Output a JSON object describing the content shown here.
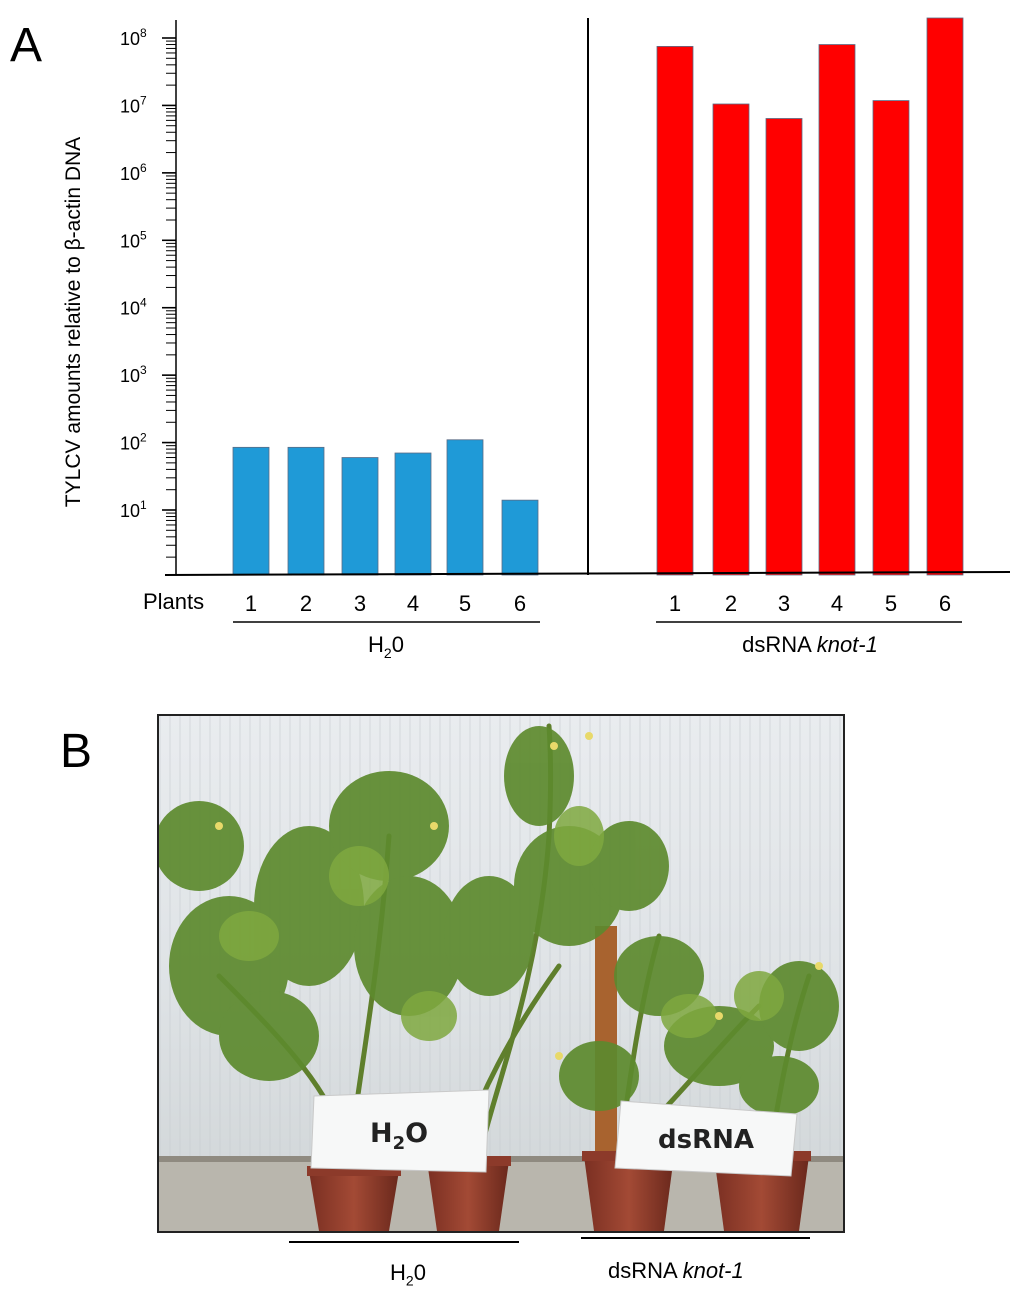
{
  "panel_a": {
    "letter": "A"
  },
  "panel_b": {
    "letter": "B",
    "sign_left": {
      "main": "H",
      "sub": "2",
      "tail": "O"
    },
    "sign_right": "dsRNA",
    "caption_left": {
      "main": "H",
      "sub": "2",
      "tail": "0"
    },
    "caption_right": {
      "prefix": "dsRNA ",
      "italic": "knot-1"
    }
  },
  "chart_data": {
    "type": "bar",
    "scale": "log",
    "ylabel": "TYLCV amounts relative to β-actin DNA",
    "ytick_labels": [
      {
        "base": "10",
        "exp": "1",
        "value": 10
      },
      {
        "base": "10",
        "exp": "2",
        "value": 100
      },
      {
        "base": "10",
        "exp": "3",
        "value": 1000
      },
      {
        "base": "10",
        "exp": "4",
        "value": 10000
      },
      {
        "base": "10",
        "exp": "5",
        "value": 100000
      },
      {
        "base": "10",
        "exp": "6",
        "value": 1000000
      },
      {
        "base": "10",
        "exp": "7",
        "value": 10000000
      },
      {
        "base": "10",
        "exp": "8",
        "value": 100000000
      }
    ],
    "xlabel_prefix": "Plants",
    "grid": false,
    "groups": [
      {
        "name_main": "H",
        "name_sub": "2",
        "name_tail": "0",
        "color": "#1f9ad7",
        "categories": [
          "1",
          "2",
          "3",
          "4",
          "5",
          "6"
        ],
        "values": [
          85,
          85,
          60,
          70,
          110,
          14
        ]
      },
      {
        "name_main": "dsRNA ",
        "name_italic": "knot-1",
        "color": "#ff0000",
        "categories": [
          "1",
          "2",
          "3",
          "4",
          "5",
          "6"
        ],
        "values": [
          75000000,
          10500000,
          6400000,
          80000000,
          11800000,
          200000000
        ]
      }
    ]
  }
}
